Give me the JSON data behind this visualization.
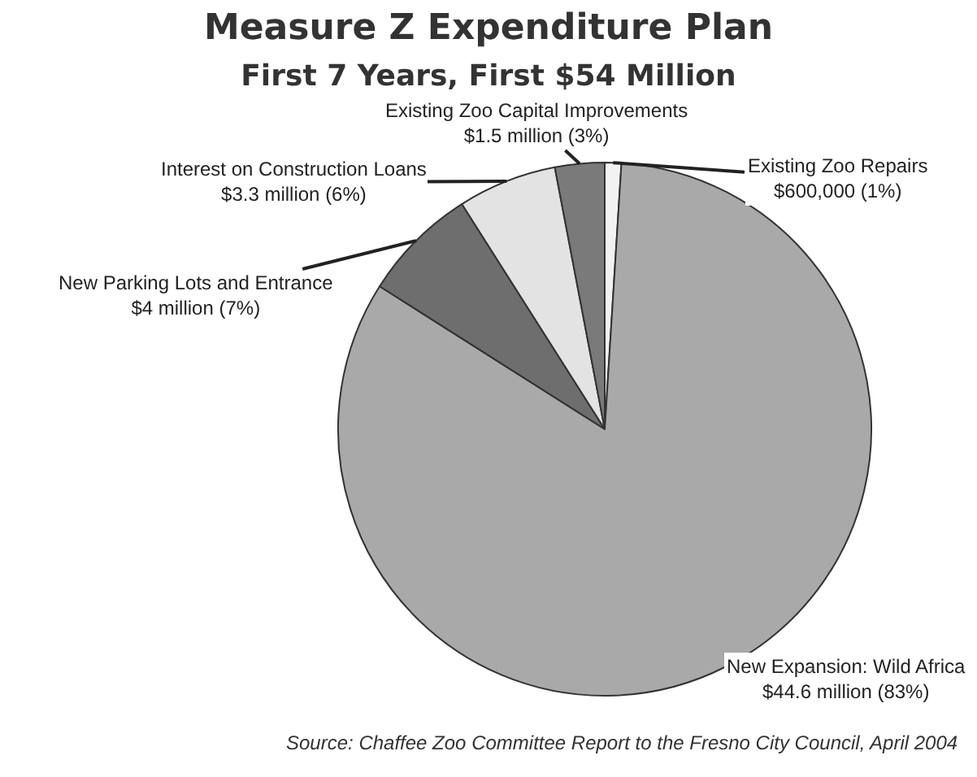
{
  "chart_data": {
    "type": "pie",
    "title": "Measure Z Expenditure Plan",
    "subtitle": "First 7 Years, First $54 Million",
    "categories": [
      "Existing Zoo Repairs",
      "New Expansion: Wild Africa",
      "New Parking Lots and Entrance",
      "Interest on Construction Loans",
      "Existing Zoo Capital Improvements"
    ],
    "values": [
      1,
      83,
      7,
      6,
      3
    ],
    "value_labels": [
      "$600,000 (1%)",
      "$44.6 million (83%)",
      "$4 million (7%)",
      "$3.3 million (6%)",
      "$1.5 million (3%)"
    ],
    "colors": [
      "#f2f2f2",
      "#a9a9a9",
      "#6e6e6e",
      "#e3e3e3",
      "#7a7a7a"
    ],
    "legend": false,
    "annotations": [
      "Source: Chaffee Zoo Committee Report to the Fresno City Council, April 2004"
    ]
  }
}
